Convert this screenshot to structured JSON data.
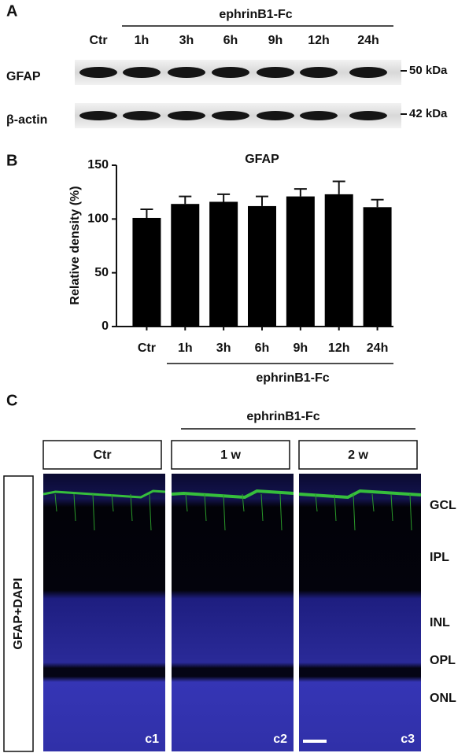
{
  "panel_a": {
    "label": "A",
    "group_label": "ephrinB1-Fc",
    "lanes": [
      "Ctr",
      "1h",
      "3h",
      "6h",
      "9h",
      "12h",
      "24h"
    ],
    "rows": [
      {
        "label": "GFAP",
        "marker": "50 kDa"
      },
      {
        "label": "β-actin",
        "marker": "42 kDa"
      }
    ]
  },
  "chart_data": {
    "type": "bar",
    "panel_label": "B",
    "title": "GFAP",
    "y_label": "Relative density (%)",
    "categories": [
      "Ctr",
      "1h",
      "3h",
      "6h",
      "9h",
      "12h",
      "24h"
    ],
    "values": [
      101,
      114,
      116,
      112,
      121,
      123,
      111
    ],
    "errors": [
      8,
      7,
      7,
      9,
      7,
      12,
      7
    ],
    "color": "#000000",
    "ylim": [
      0,
      150
    ],
    "yticks": [
      0,
      50,
      100,
      150
    ],
    "group_label": "ephrinB1-Fc"
  },
  "panel_c": {
    "label": "C",
    "group_label": "ephrinB1-Fc",
    "row_label": "GFAP+DAPI",
    "columns": [
      "Ctr",
      "1 w",
      "2 w"
    ],
    "image_labels": [
      "c1",
      "c2",
      "c3"
    ],
    "layers": [
      "GCL",
      "IPL",
      "INL",
      "OPL",
      "ONL"
    ]
  }
}
